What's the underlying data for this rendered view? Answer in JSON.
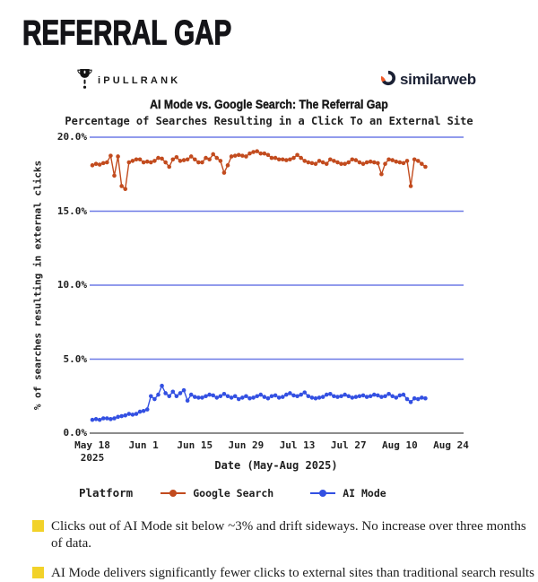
{
  "page": {
    "title": "REFERRAL GAP"
  },
  "logos": {
    "ipullrank_label": "iPULLRANK",
    "similarweb_label": "similarweb",
    "similarweb_navy": "#1b2134",
    "similarweb_orange": "#f05a28"
  },
  "chart": {
    "title": "AI Mode vs. Google Search: The Referral Gap",
    "subtitle": "Percentage of Searches Resulting in a Click To an External Site",
    "x_label": "Date (May-Aug 2025)",
    "y_label": "% of searches resulting in external clicks",
    "legend_title": "Platform"
  },
  "chart_data": {
    "type": "line",
    "title": "AI Mode vs. Google Search: The Referral Gap",
    "subtitle": "Percentage of Searches Resulting in a Click To an External Site",
    "xlabel": "Date (May-Aug 2025)",
    "ylabel": "% of searches resulting in external clicks",
    "ylim": [
      0,
      20
    ],
    "x_start": "2025-05-18",
    "x_step_days": 1,
    "grid": true,
    "grid_color": "#6d7ae6",
    "zero_line_color": "#8c8c8c",
    "legend_position": "bottom",
    "y_ticks": [
      {
        "value": 20,
        "label": "20.0%"
      },
      {
        "value": 15,
        "label": "15.0%"
      },
      {
        "value": 10,
        "label": "10.0%"
      },
      {
        "value": 5,
        "label": "5.0%"
      },
      {
        "value": 0,
        "label": "0.0%"
      }
    ],
    "x_ticks": [
      {
        "day": 0,
        "label": "May 18",
        "sublabel": "2025"
      },
      {
        "day": 14,
        "label": "Jun 1"
      },
      {
        "day": 28,
        "label": "Jun 15"
      },
      {
        "day": 42,
        "label": "Jun 29"
      },
      {
        "day": 56,
        "label": "Jul 13"
      },
      {
        "day": 70,
        "label": "Jul 27"
      },
      {
        "day": 84,
        "label": "Aug 10"
      },
      {
        "day": 98,
        "label": "Aug 24"
      }
    ],
    "series": [
      {
        "name": "Google Search",
        "color": "#c24b1e",
        "values": [
          18.1,
          18.2,
          18.15,
          18.25,
          18.3,
          18.75,
          17.4,
          18.7,
          16.7,
          16.5,
          18.3,
          18.4,
          18.5,
          18.5,
          18.3,
          18.35,
          18.3,
          18.4,
          18.6,
          18.55,
          18.3,
          18.0,
          18.5,
          18.65,
          18.4,
          18.45,
          18.5,
          18.7,
          18.5,
          18.3,
          18.3,
          18.6,
          18.5,
          18.85,
          18.6,
          18.4,
          17.6,
          18.1,
          18.7,
          18.75,
          18.8,
          18.75,
          18.7,
          18.9,
          19.0,
          19.05,
          18.9,
          18.9,
          18.8,
          18.6,
          18.6,
          18.5,
          18.5,
          18.45,
          18.5,
          18.6,
          18.8,
          18.6,
          18.4,
          18.3,
          18.25,
          18.2,
          18.4,
          18.3,
          18.2,
          18.5,
          18.4,
          18.3,
          18.2,
          18.2,
          18.3,
          18.5,
          18.45,
          18.3,
          18.2,
          18.3,
          18.35,
          18.3,
          18.25,
          17.5,
          18.2,
          18.5,
          18.45,
          18.35,
          18.3,
          18.25,
          18.4,
          16.7,
          18.5,
          18.4,
          18.2,
          18.0
        ]
      },
      {
        "name": "AI Mode",
        "color": "#3350e2",
        "values": [
          0.9,
          0.95,
          0.9,
          1.0,
          1.0,
          0.95,
          1.0,
          1.1,
          1.15,
          1.2,
          1.3,
          1.25,
          1.3,
          1.45,
          1.5,
          1.6,
          2.5,
          2.3,
          2.6,
          3.2,
          2.7,
          2.5,
          2.8,
          2.5,
          2.7,
          2.9,
          2.2,
          2.6,
          2.45,
          2.4,
          2.4,
          2.5,
          2.6,
          2.55,
          2.4,
          2.5,
          2.65,
          2.5,
          2.4,
          2.5,
          2.3,
          2.4,
          2.5,
          2.35,
          2.4,
          2.5,
          2.6,
          2.45,
          2.35,
          2.5,
          2.55,
          2.4,
          2.45,
          2.6,
          2.7,
          2.55,
          2.5,
          2.6,
          2.75,
          2.5,
          2.4,
          2.35,
          2.4,
          2.45,
          2.6,
          2.65,
          2.5,
          2.45,
          2.5,
          2.6,
          2.5,
          2.4,
          2.45,
          2.5,
          2.55,
          2.45,
          2.5,
          2.6,
          2.55,
          2.45,
          2.5,
          2.65,
          2.5,
          2.4,
          2.55,
          2.6,
          2.3,
          2.1,
          2.35,
          2.3,
          2.4,
          2.35
        ]
      }
    ]
  },
  "annotations": [
    {
      "text": "Clicks out of AI Mode sit below ~3% and drift sideways. No increase over three months of data."
    },
    {
      "text": "AI Mode delivers significantly fewer clicks to external sites than traditional search results pages."
    }
  ],
  "colors": {
    "annotation_bullet": "#f2d229",
    "text_dark": "#1d1d1d"
  }
}
